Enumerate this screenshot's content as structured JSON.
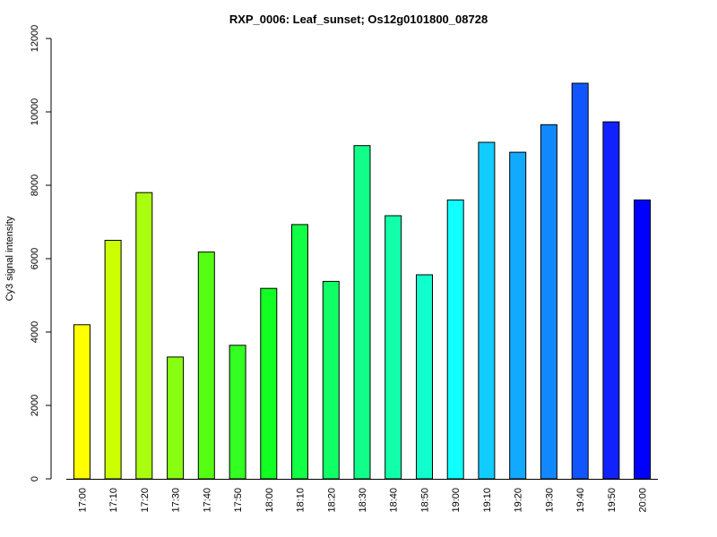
{
  "chart_data": {
    "type": "bar",
    "title": "RXP_0006: Leaf_sunset; Os12g0101800_08728",
    "xlabel": "",
    "ylabel": "Cy3 signal intensity",
    "ylim": [
      0,
      12000
    ],
    "yticks": [
      0,
      2000,
      4000,
      6000,
      8000,
      10000,
      12000
    ],
    "categories": [
      "17:00",
      "17:10",
      "17:20",
      "17:30",
      "17:40",
      "17:50",
      "18:00",
      "18:10",
      "18:20",
      "18:30",
      "18:40",
      "18:50",
      "19:00",
      "19:10",
      "19:20",
      "19:30",
      "19:40",
      "19:50",
      "20:00"
    ],
    "values": [
      4200,
      6500,
      7800,
      3320,
      6180,
      3640,
      5190,
      6930,
      5380,
      9080,
      7170,
      5560,
      7600,
      9170,
      8900,
      9650,
      10780,
      9730,
      7600
    ],
    "colors": [
      "#ffff00",
      "#ccff00",
      "#aaff11",
      "#88ff11",
      "#55ff11",
      "#33ff22",
      "#11ff22",
      "#11ff44",
      "#11ff66",
      "#11ff88",
      "#11ffaa",
      "#11ffcc",
      "#11ffff",
      "#11ccff",
      "#11aaff",
      "#1188ff",
      "#1155ff",
      "#1122ff",
      "#0000ff"
    ],
    "grid": false
  }
}
